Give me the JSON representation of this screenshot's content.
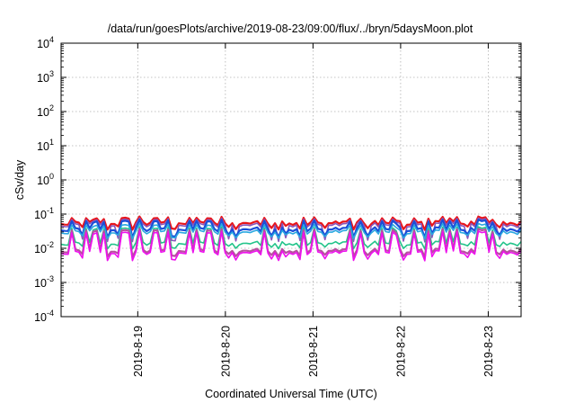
{
  "chart_data": {
    "type": "line",
    "title": "/data/run/goesPlots/archive/2019-08-23/09:00/flux/../bryn/5daysMoon.plot",
    "xlabel": "Coordinated Universal Time (UTC)",
    "ylabel": "cSv/day",
    "yscale": "log",
    "ylim": [
      0.0001,
      10000
    ],
    "xlim": [
      "2019-08-18T03:00",
      "2019-08-23T09:00"
    ],
    "grid": true,
    "legend": "none",
    "yticks": [
      {
        "base": "10",
        "exp": "-4",
        "value": 0.0001
      },
      {
        "base": "10",
        "exp": "-3",
        "value": 0.001
      },
      {
        "base": "10",
        "exp": "-2",
        "value": 0.01
      },
      {
        "base": "10",
        "exp": "-1",
        "value": 0.1
      },
      {
        "base": "10",
        "exp": "0",
        "value": 1
      },
      {
        "base": "10",
        "exp": "1",
        "value": 10
      },
      {
        "base": "10",
        "exp": "2",
        "value": 100
      },
      {
        "base": "10",
        "exp": "3",
        "value": 1000
      },
      {
        "base": "10",
        "exp": "4",
        "value": 10000
      }
    ],
    "xticks": [
      {
        "label": "2019-8-19",
        "value": "2019-08-19T00:00"
      },
      {
        "label": "2019-8-20",
        "value": "2019-08-20T00:00"
      },
      {
        "label": "2019-8-21",
        "value": "2019-08-21T00:00"
      },
      {
        "label": "2019-8-22",
        "value": "2019-08-22T00:00"
      },
      {
        "label": "2019-8-23",
        "value": "2019-08-23T00:00"
      }
    ],
    "series": [
      {
        "color": "#e8151b",
        "base": 0.055,
        "dip": 0.04,
        "spike": 0.08,
        "lw": 2.2
      },
      {
        "color": "#8855bb",
        "base": 0.048,
        "dip": 0.018,
        "spike": 0.072,
        "lw": 1.6
      },
      {
        "color": "#1a4fd8",
        "base": 0.036,
        "dip": 0.024,
        "spike": 0.065,
        "lw": 2.2
      },
      {
        "color": "#2aa8e0",
        "base": 0.03,
        "dip": 0.022,
        "spike": 0.05,
        "lw": 1.6
      },
      {
        "color": "#22c48a",
        "base": 0.014,
        "dip": 0.011,
        "spike": 0.04,
        "lw": 1.6
      },
      {
        "color": "#b84fa0",
        "base": 0.0085,
        "dip": 0.0065,
        "spike": 0.035,
        "lw": 2.2
      },
      {
        "color": "#ee11ee",
        "base": 0.0075,
        "dip": 0.005,
        "spike": 0.03,
        "lw": 1.6
      }
    ]
  }
}
